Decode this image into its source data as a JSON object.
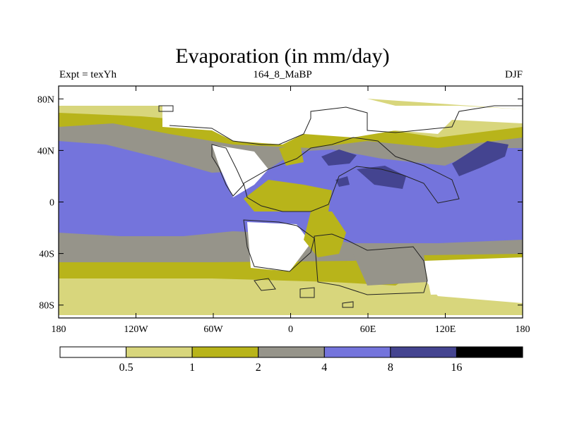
{
  "title": "Evaporation (in mm/day)",
  "subtitle_left": "Expt = texYh",
  "subtitle_center": "164_8_MaBP",
  "subtitle_right": "DJF",
  "y_ticks": [
    {
      "lat": 80,
      "label": "80N"
    },
    {
      "lat": 40,
      "label": "40N"
    },
    {
      "lat": 0,
      "label": "0"
    },
    {
      "lat": -40,
      "label": "40S"
    },
    {
      "lat": -80,
      "label": "80S"
    }
  ],
  "x_ticks": [
    {
      "lon": -180,
      "label": "180"
    },
    {
      "lon": -120,
      "label": "120W"
    },
    {
      "lon": -60,
      "label": "60W"
    },
    {
      "lon": 0,
      "label": "0"
    },
    {
      "lon": 60,
      "label": "60E"
    },
    {
      "lon": 120,
      "label": "120E"
    },
    {
      "lon": 180,
      "label": "180"
    }
  ],
  "lon_range": [
    -180,
    180
  ],
  "lat_range": [
    -90,
    90
  ],
  "colorbar": {
    "bins": [
      {
        "color": "#ffffff"
      },
      {
        "color": "#d8d67c"
      },
      {
        "color": "#b8b41a"
      },
      {
        "color": "#96948a"
      },
      {
        "color": "#7474dc"
      },
      {
        "color": "#444490"
      },
      {
        "color": "#000000"
      }
    ],
    "labels": [
      "0.5",
      "1",
      "2",
      "4",
      "8",
      "16"
    ]
  }
}
